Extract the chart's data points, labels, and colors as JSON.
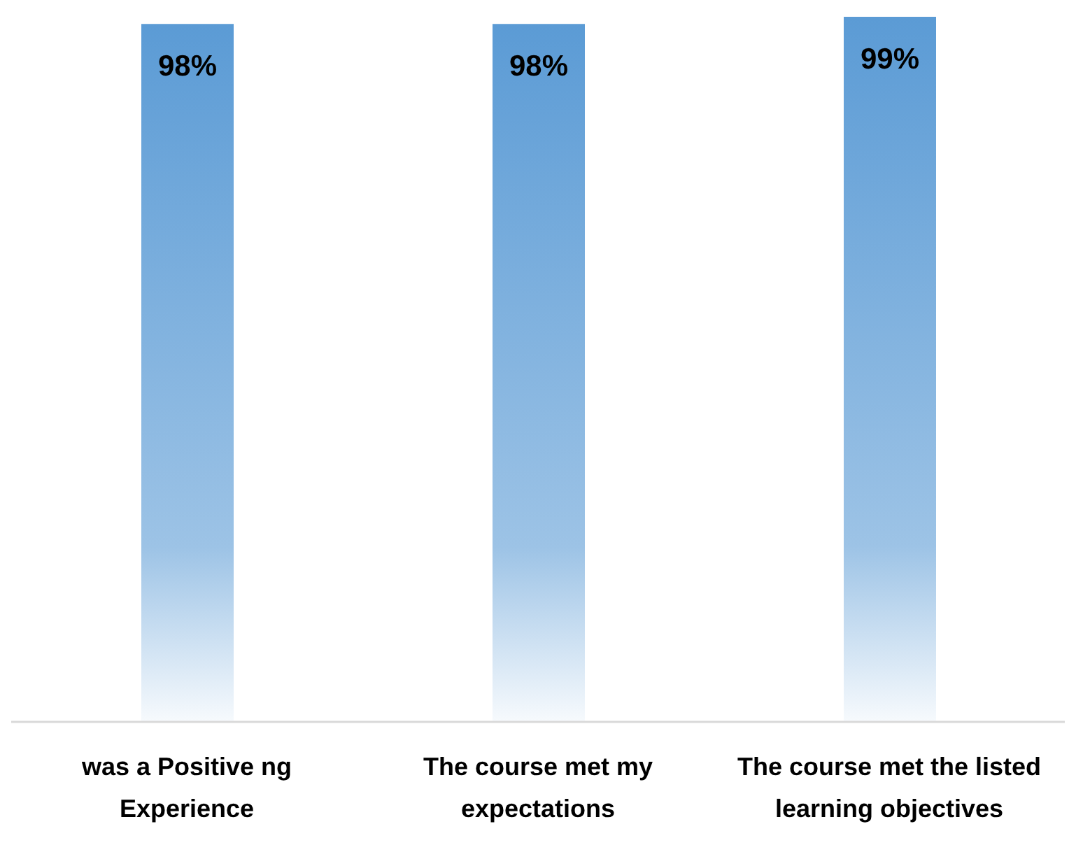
{
  "chart_data": {
    "type": "bar",
    "categories": [
      "was a Positive ng Experience",
      "The course met my expectations",
      "The course met the listed learning objectives"
    ],
    "values": [
      98,
      98,
      99
    ],
    "color": "#5b9bd5",
    "value_labels": [
      "98%",
      "98%",
      "99%"
    ],
    "grid": false,
    "legend": false
  }
}
